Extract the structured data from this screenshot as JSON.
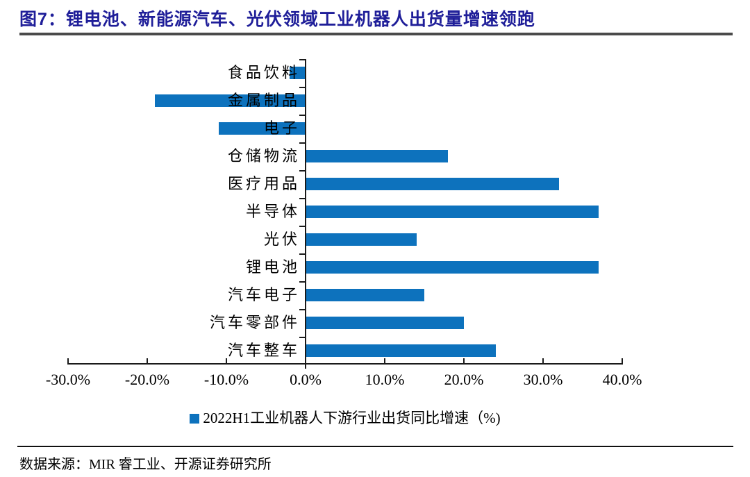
{
  "title": "图7：锂电池、新能源汽车、光伏领域工业机器人出货量增速领跑",
  "source": "数据来源：MIR 睿工业、开源证券研究所",
  "colors": {
    "bar": "#0d72bd",
    "title": "#1f1e99",
    "axis": "#1a1a1a"
  },
  "chart_data": {
    "type": "bar",
    "orientation": "horizontal",
    "title": "图7：锂电池、新能源汽车、光伏领域工业机器人出货量增速领跑",
    "categories": [
      "食品饮料",
      "金属制品",
      "电子",
      "仓储物流",
      "医疗用品",
      "半导体",
      "光伏",
      "锂电池",
      "汽车电子",
      "汽车零部件",
      "汽车整车"
    ],
    "values": [
      -2,
      -19,
      -11,
      18,
      32,
      37,
      14,
      37,
      15,
      20,
      24
    ],
    "unit": "%",
    "xlim": [
      -30,
      40
    ],
    "x_tick_values": [
      -30,
      -20,
      -10,
      0,
      10,
      20,
      30,
      40
    ],
    "x_tick_labels": [
      "-30.0%",
      "-20.0%",
      "-10.0%",
      "0.0%",
      "10.0%",
      "20.0%",
      "30.0%",
      "40.0%"
    ],
    "grid": false,
    "legend": "2022H1工业机器人下游行业出货同比增速（%)",
    "legend_position": "bottom-center"
  }
}
